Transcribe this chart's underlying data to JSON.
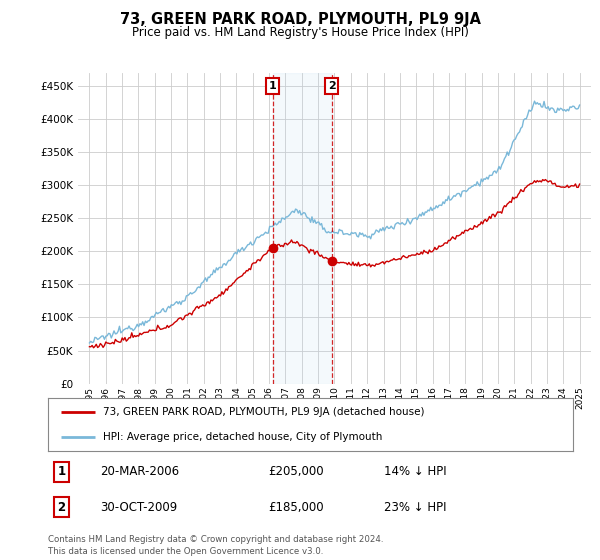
{
  "title": "73, GREEN PARK ROAD, PLYMOUTH, PL9 9JA",
  "subtitle": "Price paid vs. HM Land Registry's House Price Index (HPI)",
  "ylim": [
    0,
    470000
  ],
  "yticks": [
    0,
    50000,
    100000,
    150000,
    200000,
    250000,
    300000,
    350000,
    400000,
    450000
  ],
  "background_color": "#ffffff",
  "grid_color": "#cccccc",
  "hpi_color": "#7ab8d9",
  "price_color": "#cc0000",
  "sale1_date_x": 2006.22,
  "sale1_price": 205000,
  "sale2_date_x": 2009.83,
  "sale2_price": 185000,
  "sale1_label": "1",
  "sale2_label": "2",
  "legend_line1": "73, GREEN PARK ROAD, PLYMOUTH, PL9 9JA (detached house)",
  "legend_line2": "HPI: Average price, detached house, City of Plymouth",
  "table_row1": [
    "1",
    "20-MAR-2006",
    "£205,000",
    "14% ↓ HPI"
  ],
  "table_row2": [
    "2",
    "30-OCT-2009",
    "£185,000",
    "23% ↓ HPI"
  ],
  "footnote": "Contains HM Land Registry data © Crown copyright and database right 2024.\nThis data is licensed under the Open Government Licence v3.0.",
  "xlim_left": 1994.3,
  "xlim_right": 2025.7
}
